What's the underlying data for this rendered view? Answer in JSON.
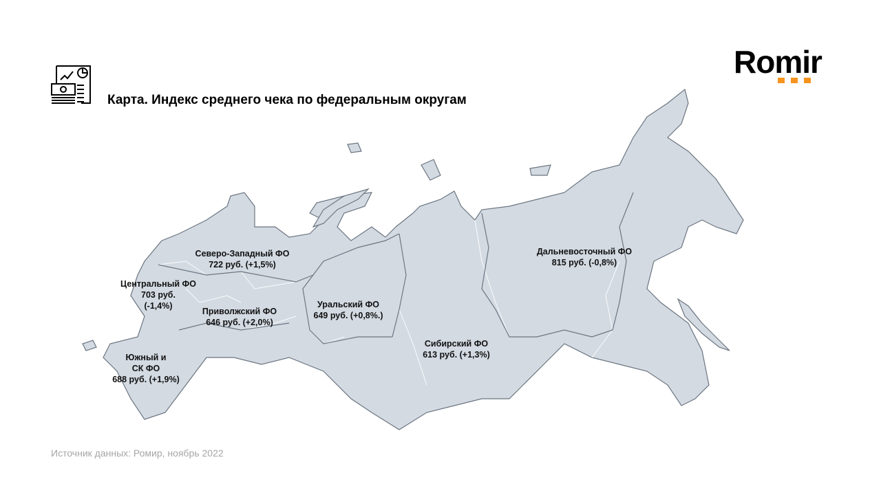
{
  "header": {
    "title": "Карта. Индекс среднего чека по федеральным округам",
    "icon": "finance-report-icon",
    "logo_text": "Romir",
    "logo_accent_color": "#f7941d"
  },
  "map": {
    "fill_color": "#d3dae2",
    "border_color": "#6b7580",
    "regions": [
      {
        "name": "Северо-Западный ФО",
        "value": "722 руб. (+1,5%)"
      },
      {
        "name": "Центральный ФО",
        "value": "703 руб.",
        "change": "(-1,4%)"
      },
      {
        "name": "Приволжский ФО",
        "value": "646 руб. (+2,0%)"
      },
      {
        "name": "Уральский ФО",
        "value": "649 руб. (+0,8%.)"
      },
      {
        "name": "Южный и",
        "name2": "СК ФО",
        "value": "688 руб. (+1,9%)"
      },
      {
        "name": "Сибирский ФО",
        "value": "613 руб. (+1,3%)"
      },
      {
        "name": "Дальневосточный ФО",
        "value": "815 руб. (-0,8%)"
      }
    ]
  },
  "footer": {
    "source": "Источник данных: Ромир, ноябрь 2022"
  }
}
